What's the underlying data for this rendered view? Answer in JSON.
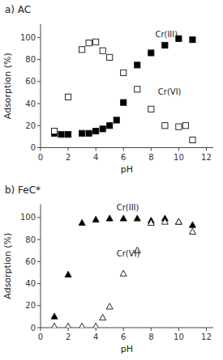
{
  "chart_data": [
    {
      "type": "scatter",
      "title": "a) AC",
      "x_label": "pH",
      "y_label": "Adsorption (%)",
      "xlim": [
        0,
        12.5
      ],
      "ylim": [
        0,
        112
      ],
      "xticks": [
        0,
        2,
        4,
        6,
        8,
        10,
        12
      ],
      "yticks": [
        0,
        20,
        40,
        60,
        80,
        100
      ],
      "grid": false,
      "series": [
        {
          "color": "black",
          "marker": "square",
          "x": [
            1,
            1.5,
            2,
            3,
            3.5,
            4,
            4.5,
            5,
            5.5,
            6,
            7,
            8,
            9,
            10,
            11
          ],
          "values": [
            13,
            12,
            12,
            13,
            13,
            15,
            17,
            20,
            25,
            41,
            75,
            86,
            93,
            99,
            98
          ]
        },
        {
          "color": "white",
          "marker": "square",
          "x": [
            1,
            2,
            3,
            3.5,
            4,
            4.5,
            5,
            6,
            7,
            8,
            9,
            10,
            10.5,
            11
          ],
          "values": [
            15,
            46,
            89,
            95,
            96,
            88,
            82,
            68,
            53,
            35,
            20,
            19,
            20,
            7
          ]
        }
      ],
      "annotations": [
        {
          "text": "Cr(III)",
          "x": 8.3,
          "y": 99
        },
        {
          "text": "Cr(VI)",
          "x": 8.5,
          "y": 47
        }
      ]
    },
    {
      "type": "scatter",
      "title": "b) FeC*",
      "x_label": "pH",
      "y_label": "Adsorption (%)",
      "xlim": [
        0,
        12.5
      ],
      "ylim": [
        0,
        112
      ],
      "xticks": [
        0,
        2,
        4,
        6,
        8,
        10,
        12
      ],
      "yticks": [
        0,
        20,
        40,
        60,
        80,
        100
      ],
      "grid": false,
      "series": [
        {
          "color": "black",
          "marker": "triangle",
          "x": [
            1,
            2,
            3,
            4,
            5,
            6,
            7,
            8,
            9,
            10,
            11
          ],
          "values": [
            10,
            48,
            95,
            98,
            99,
            99,
            99,
            97,
            99,
            96,
            93
          ]
        },
        {
          "color": "white",
          "marker": "triangle",
          "x": [
            1,
            2,
            3,
            4,
            4.5,
            5,
            6,
            7,
            8,
            9,
            10,
            11
          ],
          "values": [
            1,
            1,
            1,
            1,
            9,
            19,
            49,
            70,
            95,
            96,
            96,
            87
          ]
        }
      ],
      "annotations": [
        {
          "text": "Cr(III)",
          "x": 5.5,
          "y": 105
        },
        {
          "text": "Cr(VI)",
          "x": 5.5,
          "y": 63
        }
      ]
    }
  ]
}
